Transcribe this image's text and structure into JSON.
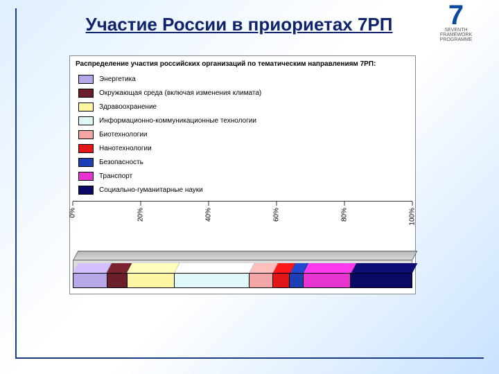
{
  "background": {
    "gradient_from": "#dfefff",
    "gradient_to": "#c8e2ff"
  },
  "accent_line_color": "#1a3a8a",
  "title": "Участие России в приориетах 7РП",
  "title_color": "#10246e",
  "title_fontsize": 26,
  "logo": {
    "digit": "7",
    "caption": "SEVENTH FRAMEWORK\nPROGRAMME",
    "digit_color": "#0a4aa0"
  },
  "chart": {
    "type": "stacked-bar-3d",
    "panel_bg": "#ffffff",
    "panel_border": "#888888",
    "caption": "Распределение участия российских организаций по тематическим направлениям 7РП:",
    "caption_fontsize": 10,
    "label_fontsize": 10,
    "categories": [
      {
        "label": "Энергетика",
        "color": "#b7a7e7",
        "value": 10
      },
      {
        "label": "Окружающая среда (включая изменения климата)",
        "color": "#6a1f2a",
        "value": 6
      },
      {
        "label": "Здравоохранение",
        "color": "#fdf6a3",
        "value": 14
      },
      {
        "label": "Информационно-коммуникационные технологии",
        "color": "#dff7f7",
        "value": 22
      },
      {
        "label": "Биотехнологии",
        "color": "#f4a6a6",
        "value": 7
      },
      {
        "label": "Нанотехнологии",
        "color": "#e11515",
        "value": 5
      },
      {
        "label": "Безопасность",
        "color": "#1d3fb5",
        "value": 4
      },
      {
        "label": "Транспорт",
        "color": "#e733d0",
        "value": 14
      },
      {
        "label": "Социально-гуманитарные науки",
        "color": "#0a0a66",
        "value": 18
      }
    ],
    "axis": {
      "min": 0,
      "max": 100,
      "tick_step": 20,
      "ticks": [
        "0%",
        "20%",
        "40%",
        "60%",
        "80%",
        "100%"
      ]
    },
    "top3d_fill": "#d0d0d0",
    "cover_fill": "#dcdcdc"
  }
}
